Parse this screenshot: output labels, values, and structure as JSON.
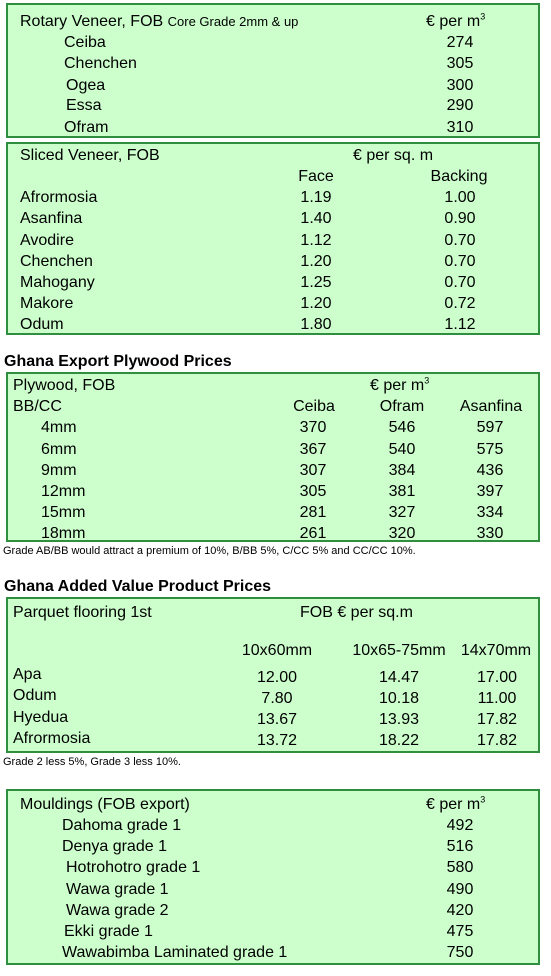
{
  "rotary": {
    "title": "Rotary Veneer, FOB",
    "title_small": "Core Grade 2mm & up",
    "unit": "€ per m",
    "unit_sup": "3",
    "rows": [
      {
        "species": "Ceiba",
        "price": "274"
      },
      {
        "species": "Chenchen",
        "price": "305"
      },
      {
        "species": "Ogea",
        "price": "300"
      },
      {
        "species": "Essa",
        "price": "290"
      },
      {
        "species": "Ofram",
        "price": "310"
      }
    ]
  },
  "sliced": {
    "title": "Sliced Veneer, FOB",
    "unit": "€ per sq. m",
    "col_face": "Face",
    "col_backing": "Backing",
    "rows": [
      {
        "species": "Afrormosia",
        "face": "1.19",
        "backing": "1.00"
      },
      {
        "species": "Asanfina",
        "face": "1.40",
        "backing": "0.90"
      },
      {
        "species": "Avodire",
        "face": "1.12",
        "backing": "0.70"
      },
      {
        "species": "Chenchen",
        "face": "1.20",
        "backing": "0.70"
      },
      {
        "species": "Mahogany",
        "face": "1.25",
        "backing": "0.70"
      },
      {
        "species": "Makore",
        "face": "1.20",
        "backing": "0.72"
      },
      {
        "species": "Odum",
        "face": "1.80",
        "backing": "1.12"
      }
    ]
  },
  "plywood": {
    "heading": "Ghana Export Plywood Prices",
    "title": "Plywood, FOB",
    "grade": "BB/CC",
    "unit": "€ per m",
    "unit_sup": "3",
    "cols": [
      "Ceiba",
      "Ofram",
      "Asanfina"
    ],
    "rows": [
      {
        "size": "4mm",
        "v": [
          "370",
          "546",
          "597"
        ]
      },
      {
        "size": "6mm",
        "v": [
          "367",
          "540",
          "575"
        ]
      },
      {
        "size": "9mm",
        "v": [
          "307",
          "384",
          "436"
        ]
      },
      {
        "size": "12mm",
        "v": [
          "305",
          "381",
          "397"
        ]
      },
      {
        "size": "15mm",
        "v": [
          "281",
          "327",
          "334"
        ]
      },
      {
        "size": "18mm",
        "v": [
          "261",
          "320",
          "330"
        ]
      }
    ],
    "note": "Grade AB/BB would attract a premium of 10%, B/BB 5%, C/CC 5% and CC/CC 10%."
  },
  "parquet": {
    "heading": "Ghana Added Value Product Prices",
    "title": "Parquet flooring 1st",
    "unit": "FOB € per sq.m",
    "cols": [
      "10x60mm",
      "10x65-75mm",
      "14x70mm"
    ],
    "rows": [
      {
        "species": "Apa",
        "v": [
          "12.00",
          "14.47",
          "17.00"
        ]
      },
      {
        "species": "Odum",
        "v": [
          "7.80",
          "10.18",
          "11.00"
        ]
      },
      {
        "species": "Hyedua",
        "v": [
          "13.67",
          "13.93",
          "17.82"
        ]
      },
      {
        "species": "Afrormosia",
        "v": [
          "13.72",
          "18.22",
          "17.82"
        ]
      }
    ],
    "note": "Grade 2 less 5%, Grade 3 less 10%."
  },
  "mouldings": {
    "title": "Mouldings (FOB export)",
    "unit": "€ per m",
    "unit_sup": "3",
    "rows": [
      {
        "item": "Dahoma grade 1",
        "price": "492"
      },
      {
        "item": "Denya grade 1",
        "price": "516"
      },
      {
        "item": "Hotrohotro grade 1",
        "price": "580"
      },
      {
        "item": "Wawa grade 1",
        "price": "490"
      },
      {
        "item": "Wawa grade 2",
        "price": "420"
      },
      {
        "item": "Ekki grade 1",
        "price": "475"
      },
      {
        "item": "Wawabimba Laminated grade 1",
        "price": "750"
      }
    ]
  }
}
